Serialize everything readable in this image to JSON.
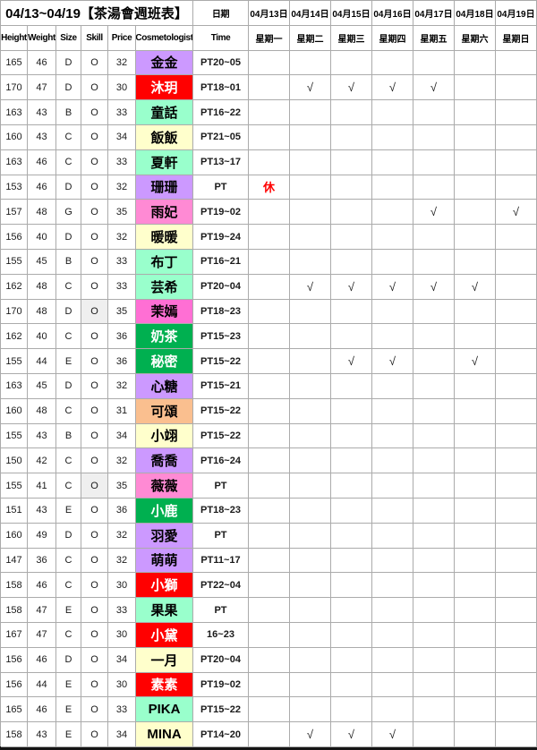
{
  "header": {
    "title": "04/13~04/19【茶湯會週班表】",
    "date_label": "日期",
    "col_labels": [
      "Height",
      "Weight",
      "Size",
      "Skill",
      "Price",
      "Cosmetologist",
      "Time"
    ],
    "dates": [
      "04月13日",
      "04月14日",
      "04月15日",
      "04月16日",
      "04月17日",
      "04月18日",
      "04月19日"
    ],
    "weekdays": [
      "星期一",
      "星期二",
      "星期三",
      "星期四",
      "星期五",
      "星期六",
      "星期日"
    ]
  },
  "marks": {
    "check": "√",
    "rest": "休"
  },
  "colors": {
    "grid_line": "#ABABAB",
    "rest": "#FF0000",
    "skill_gray": "#EFEFEF",
    "purple": "#CC99FF",
    "red": "#FF0000",
    "mint": "#99FFCC",
    "yellow": "#FFFFCC",
    "pink": "#FF8AD4",
    "hot_pink": "#FF6FD4",
    "green": "#00B050",
    "peach": "#FABF8F"
  },
  "rows": [
    {
      "h": "165",
      "w": "46",
      "size": "D",
      "skill": "O",
      "price": "32",
      "name": "金金",
      "time": "PT20~05",
      "name_bg": "#CC99FF",
      "name_fg": "#000000",
      "skill_bg": "",
      "days": [
        "",
        "",
        "",
        "",
        "",
        "",
        ""
      ]
    },
    {
      "h": "170",
      "w": "47",
      "size": "D",
      "skill": "O",
      "price": "30",
      "name": "沐玥",
      "time": "PT18~01",
      "name_bg": "#FF0000",
      "name_fg": "#FFFFFF",
      "skill_bg": "",
      "days": [
        "",
        "√",
        "√",
        "√",
        "√",
        "",
        ""
      ]
    },
    {
      "h": "163",
      "w": "43",
      "size": "B",
      "skill": "O",
      "price": "33",
      "name": "童話",
      "time": "PT16~22",
      "name_bg": "#99FFCC",
      "name_fg": "#000000",
      "skill_bg": "",
      "days": [
        "",
        "",
        "",
        "",
        "",
        "",
        ""
      ]
    },
    {
      "h": "160",
      "w": "43",
      "size": "C",
      "skill": "O",
      "price": "34",
      "name": "飯飯",
      "time": "PT21~05",
      "name_bg": "#FFFFCC",
      "name_fg": "#000000",
      "skill_bg": "",
      "days": [
        "",
        "",
        "",
        "",
        "",
        "",
        ""
      ]
    },
    {
      "h": "163",
      "w": "46",
      "size": "C",
      "skill": "O",
      "price": "33",
      "name": "夏軒",
      "time": "PT13~17",
      "name_bg": "#99FFCC",
      "name_fg": "#000000",
      "skill_bg": "",
      "days": [
        "",
        "",
        "",
        "",
        "",
        "",
        ""
      ]
    },
    {
      "h": "153",
      "w": "46",
      "size": "D",
      "skill": "O",
      "price": "32",
      "name": "珊珊",
      "time": "PT",
      "name_bg": "#CC99FF",
      "name_fg": "#000000",
      "skill_bg": "",
      "days": [
        "休",
        "",
        "",
        "",
        "",
        "",
        ""
      ]
    },
    {
      "h": "157",
      "w": "48",
      "size": "G",
      "skill": "O",
      "price": "35",
      "name": "雨妃",
      "time": "PT19~02",
      "name_bg": "#FF8AD4",
      "name_fg": "#000000",
      "skill_bg": "",
      "days": [
        "",
        "",
        "",
        "",
        "√",
        "",
        "√"
      ]
    },
    {
      "h": "156",
      "w": "40",
      "size": "D",
      "skill": "O",
      "price": "32",
      "name": "暖暖",
      "time": "PT19~24",
      "name_bg": "#FFFFCC",
      "name_fg": "#000000",
      "skill_bg": "",
      "days": [
        "",
        "",
        "",
        "",
        "",
        "",
        ""
      ]
    },
    {
      "h": "155",
      "w": "45",
      "size": "B",
      "skill": "O",
      "price": "33",
      "name": "布丁",
      "time": "PT16~21",
      "name_bg": "#99FFCC",
      "name_fg": "#000000",
      "skill_bg": "",
      "days": [
        "",
        "",
        "",
        "",
        "",
        "",
        ""
      ]
    },
    {
      "h": "162",
      "w": "48",
      "size": "C",
      "skill": "O",
      "price": "33",
      "name": "芸希",
      "time": "PT20~04",
      "name_bg": "#99FFCC",
      "name_fg": "#000000",
      "skill_bg": "",
      "days": [
        "",
        "√",
        "√",
        "√",
        "√",
        "√",
        ""
      ]
    },
    {
      "h": "170",
      "w": "48",
      "size": "D",
      "skill": "O",
      "price": "35",
      "name": "茉嫣",
      "time": "PT18~23",
      "name_bg": "#FF6FD4",
      "name_fg": "#000000",
      "skill_bg": "#EFEFEF",
      "days": [
        "",
        "",
        "",
        "",
        "",
        "",
        ""
      ]
    },
    {
      "h": "162",
      "w": "40",
      "size": "C",
      "skill": "O",
      "price": "36",
      "name": "奶茶",
      "time": "PT15~23",
      "name_bg": "#00B050",
      "name_fg": "#FFFFFF",
      "skill_bg": "",
      "days": [
        "",
        "",
        "",
        "",
        "",
        "",
        ""
      ]
    },
    {
      "h": "155",
      "w": "44",
      "size": "E",
      "skill": "O",
      "price": "36",
      "name": "秘密",
      "time": "PT15~22",
      "name_bg": "#00B050",
      "name_fg": "#FFFFFF",
      "skill_bg": "",
      "days": [
        "",
        "",
        "√",
        "√",
        "",
        "√",
        ""
      ]
    },
    {
      "h": "163",
      "w": "45",
      "size": "D",
      "skill": "O",
      "price": "32",
      "name": "心糖",
      "time": "PT15~21",
      "name_bg": "#CC99FF",
      "name_fg": "#000000",
      "skill_bg": "",
      "days": [
        "",
        "",
        "",
        "",
        "",
        "",
        ""
      ]
    },
    {
      "h": "160",
      "w": "48",
      "size": "C",
      "skill": "O",
      "price": "31",
      "name": "可頌",
      "time": "PT15~22",
      "name_bg": "#FABF8F",
      "name_fg": "#000000",
      "skill_bg": "",
      "days": [
        "",
        "",
        "",
        "",
        "",
        "",
        ""
      ]
    },
    {
      "h": "155",
      "w": "43",
      "size": "B",
      "skill": "O",
      "price": "34",
      "name": "小翊",
      "time": "PT15~22",
      "name_bg": "#FFFFCC",
      "name_fg": "#000000",
      "skill_bg": "",
      "days": [
        "",
        "",
        "",
        "",
        "",
        "",
        ""
      ]
    },
    {
      "h": "150",
      "w": "42",
      "size": "C",
      "skill": "O",
      "price": "32",
      "name": "喬喬",
      "time": "PT16~24",
      "name_bg": "#CC99FF",
      "name_fg": "#000000",
      "skill_bg": "",
      "days": [
        "",
        "",
        "",
        "",
        "",
        "",
        ""
      ]
    },
    {
      "h": "155",
      "w": "41",
      "size": "C",
      "skill": "O",
      "price": "35",
      "name": "薇薇",
      "time": "PT",
      "name_bg": "#FF8AD4",
      "name_fg": "#000000",
      "skill_bg": "#EFEFEF",
      "days": [
        "",
        "",
        "",
        "",
        "",
        "",
        ""
      ]
    },
    {
      "h": "151",
      "w": "43",
      "size": "E",
      "skill": "O",
      "price": "36",
      "name": "小鹿",
      "time": "PT18~23",
      "name_bg": "#00B050",
      "name_fg": "#FFFFFF",
      "skill_bg": "",
      "days": [
        "",
        "",
        "",
        "",
        "",
        "",
        ""
      ]
    },
    {
      "h": "160",
      "w": "49",
      "size": "D",
      "skill": "O",
      "price": "32",
      "name": "羽愛",
      "time": "PT",
      "name_bg": "#CC99FF",
      "name_fg": "#000000",
      "skill_bg": "",
      "days": [
        "",
        "",
        "",
        "",
        "",
        "",
        ""
      ]
    },
    {
      "h": "147",
      "w": "36",
      "size": "C",
      "skill": "O",
      "price": "32",
      "name": "萌萌",
      "time": "PT11~17",
      "name_bg": "#CC99FF",
      "name_fg": "#000000",
      "skill_bg": "",
      "days": [
        "",
        "",
        "",
        "",
        "",
        "",
        ""
      ]
    },
    {
      "h": "158",
      "w": "46",
      "size": "C",
      "skill": "O",
      "price": "30",
      "name": "小獅",
      "time": "PT22~04",
      "name_bg": "#FF0000",
      "name_fg": "#FFFFFF",
      "skill_bg": "",
      "days": [
        "",
        "",
        "",
        "",
        "",
        "",
        ""
      ]
    },
    {
      "h": "158",
      "w": "47",
      "size": "E",
      "skill": "O",
      "price": "33",
      "name": "果果",
      "time": "PT",
      "name_bg": "#99FFCC",
      "name_fg": "#000000",
      "skill_bg": "",
      "days": [
        "",
        "",
        "",
        "",
        "",
        "",
        ""
      ]
    },
    {
      "h": "167",
      "w": "47",
      "size": "C",
      "skill": "O",
      "price": "30",
      "name": "小黛",
      "time": "16~23",
      "name_bg": "#FF0000",
      "name_fg": "#FFFFFF",
      "skill_bg": "",
      "days": [
        "",
        "",
        "",
        "",
        "",
        "",
        ""
      ]
    },
    {
      "h": "156",
      "w": "46",
      "size": "D",
      "skill": "O",
      "price": "34",
      "name": "一月",
      "time": "PT20~04",
      "name_bg": "#FFFFCC",
      "name_fg": "#000000",
      "skill_bg": "",
      "days": [
        "",
        "",
        "",
        "",
        "",
        "",
        ""
      ]
    },
    {
      "h": "156",
      "w": "44",
      "size": "E",
      "skill": "O",
      "price": "30",
      "name": "素素",
      "time": "PT19~02",
      "name_bg": "#FF0000",
      "name_fg": "#FFFFFF",
      "skill_bg": "",
      "days": [
        "",
        "",
        "",
        "",
        "",
        "",
        ""
      ]
    },
    {
      "h": "165",
      "w": "46",
      "size": "E",
      "skill": "O",
      "price": "33",
      "name": "PIKA",
      "time": "PT15~22",
      "name_bg": "#99FFCC",
      "name_fg": "#000000",
      "skill_bg": "",
      "days": [
        "",
        "",
        "",
        "",
        "",
        "",
        ""
      ]
    },
    {
      "h": "158",
      "w": "43",
      "size": "E",
      "skill": "O",
      "price": "34",
      "name": "MINA",
      "time": "PT14~20",
      "name_bg": "#FFFFCC",
      "name_fg": "#000000",
      "skill_bg": "",
      "days": [
        "",
        "√",
        "√",
        "√",
        "",
        "",
        ""
      ]
    }
  ]
}
